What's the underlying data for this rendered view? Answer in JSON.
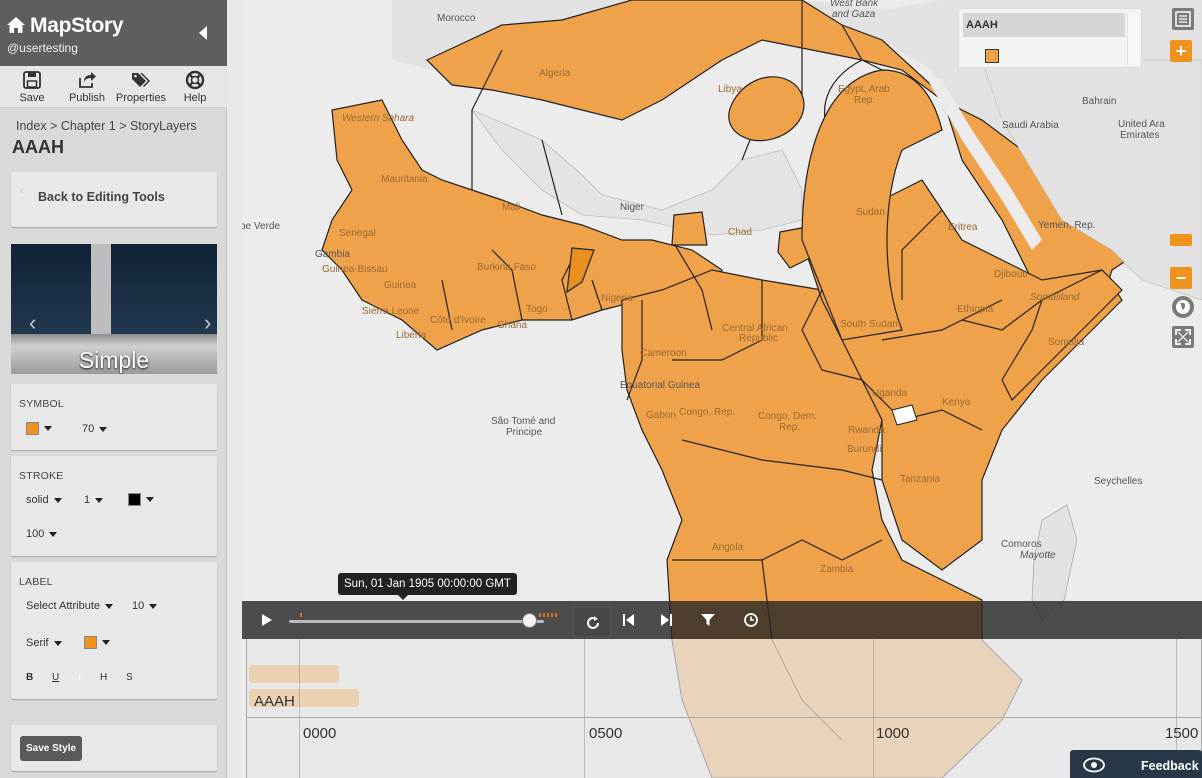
{
  "app": {
    "title": "MapStory",
    "user": "@usertesting"
  },
  "toolbar": [
    {
      "label": "Save",
      "icon": "save-icon"
    },
    {
      "label": "Publish",
      "icon": "share-icon"
    },
    {
      "label": "Properties",
      "icon": "tags-icon"
    },
    {
      "label": "Help",
      "icon": "lifebuoy-icon"
    }
  ],
  "breadcrumb": "Index > Chapter 1 > StoryLayers",
  "layer_title": "AAAH",
  "back_label": "Back to Editing Tools",
  "carousel": {
    "label": "Simple"
  },
  "symbol": {
    "section": "SYMBOL",
    "color": "#f0921e",
    "size": "70"
  },
  "stroke": {
    "section": "STROKE",
    "style": "solid",
    "width": "1",
    "color": "#000000",
    "opacity": "100"
  },
  "label": {
    "section": "LABEL",
    "attribute": "Select Attribute",
    "size": "10",
    "font": "Serif",
    "color": "#f0921e",
    "format_bold": "B",
    "format_underline": "U",
    "format_italic": "I",
    "format_halo": "H",
    "format_shadow": "S"
  },
  "save_style_label": "Save Style",
  "legend": {
    "layer": "AAAH",
    "fill": "#f0a24a"
  },
  "map_labels": [
    {
      "text": "West Bank",
      "kind": "ital"
    },
    {
      "text": "and Gaza",
      "kind": "ital"
    },
    {
      "text": "Morocco",
      "kind": "country"
    },
    {
      "text": "Algeria",
      "kind": "land"
    },
    {
      "text": "Libya",
      "kind": "land"
    },
    {
      "text": "Egypt, Arab",
      "kind": "land"
    },
    {
      "text": "Rep.",
      "kind": "land"
    },
    {
      "text": "Bahrain",
      "kind": "country"
    },
    {
      "text": "Saudi Arabia",
      "kind": "country"
    },
    {
      "text": "United Ara",
      "kind": "country"
    },
    {
      "text": "Emirates",
      "kind": "country"
    },
    {
      "text": "Western Sahara",
      "kind": "land-ital"
    },
    {
      "text": "Mauritania",
      "kind": "land"
    },
    {
      "text": "Mali",
      "kind": "land"
    },
    {
      "text": "Niger",
      "kind": "country"
    },
    {
      "text": "Sudan",
      "kind": "land"
    },
    {
      "text": "Eritrea",
      "kind": "land"
    },
    {
      "text": "Yemen, Rep.",
      "kind": "country"
    },
    {
      "text": "pe Verde",
      "kind": "country"
    },
    {
      "text": "Senegal",
      "kind": "land"
    },
    {
      "text": "Gambia",
      "kind": "country"
    },
    {
      "text": "Guinea-Bissau",
      "kind": "land"
    },
    {
      "text": "Burkina Faso",
      "kind": "land"
    },
    {
      "text": "Chad",
      "kind": "land"
    },
    {
      "text": "Djibouti",
      "kind": "land"
    },
    {
      "text": "Somaliland",
      "kind": "land-ital"
    },
    {
      "text": "Guinea",
      "kind": "land"
    },
    {
      "text": "Nigeria",
      "kind": "land"
    },
    {
      "text": "Ethiopia",
      "kind": "land"
    },
    {
      "text": "Sierra Leone",
      "kind": "land"
    },
    {
      "text": "Côte d'Ivoire",
      "kind": "land"
    },
    {
      "text": "Liberia",
      "kind": "land"
    },
    {
      "text": "Ghana",
      "kind": "land"
    },
    {
      "text": "Togo",
      "kind": "land"
    },
    {
      "text": "Central African",
      "kind": "land"
    },
    {
      "text": "Republic",
      "kind": "land"
    },
    {
      "text": "South Sudan",
      "kind": "land"
    },
    {
      "text": "Somalia",
      "kind": "land"
    },
    {
      "text": "Cameroon",
      "kind": "land"
    },
    {
      "text": "Equatorial Guinea",
      "kind": "country"
    },
    {
      "text": "Uganda",
      "kind": "land"
    },
    {
      "text": "Kenya",
      "kind": "land"
    },
    {
      "text": "São Tomé and",
      "kind": "country"
    },
    {
      "text": "Principe",
      "kind": "country"
    },
    {
      "text": "Gabon",
      "kind": "land"
    },
    {
      "text": "Congo, Rep.",
      "kind": "land"
    },
    {
      "text": "Congo, Dem.",
      "kind": "land"
    },
    {
      "text": "Rep.",
      "kind": "land"
    },
    {
      "text": "Rwanda",
      "kind": "land"
    },
    {
      "text": "Burundi",
      "kind": "land"
    },
    {
      "text": "Tanzania",
      "kind": "land"
    },
    {
      "text": "Seychelles",
      "kind": "country"
    },
    {
      "text": "Angola",
      "kind": "land"
    },
    {
      "text": "Zambia",
      "kind": "land"
    },
    {
      "text": "Comoros",
      "kind": "country"
    },
    {
      "text": "Mayotte",
      "kind": "ital"
    }
  ],
  "timeline": {
    "current_time": "Sun, 01 Jan 1905 00:00:00 GMT",
    "progress": 0.94,
    "layer_name": "AAAH",
    "years": [
      "0000",
      "0500",
      "1000",
      "1500"
    ]
  },
  "feedback_label": "Feedback"
}
